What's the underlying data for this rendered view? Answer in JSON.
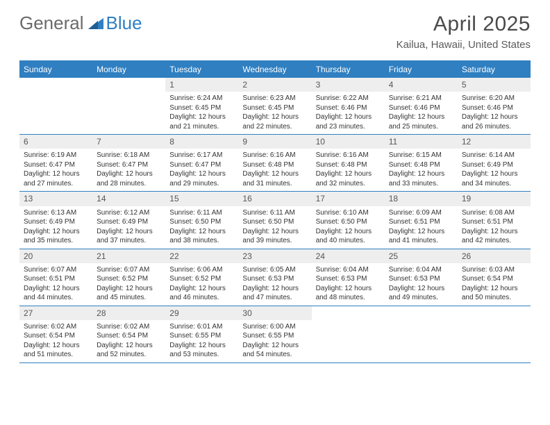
{
  "logo": {
    "text_general": "General",
    "text_blue": "Blue"
  },
  "title": "April 2025",
  "location": "Kailua, Hawaii, United States",
  "colors": {
    "brand_blue": "#2f7fc1",
    "header_text": "#ffffff",
    "daynum_bg": "#eeeeee",
    "border": "#2f7fc1",
    "body_text": "#333333"
  },
  "weekdays": [
    "Sunday",
    "Monday",
    "Tuesday",
    "Wednesday",
    "Thursday",
    "Friday",
    "Saturday"
  ],
  "weeks": [
    [
      null,
      null,
      {
        "n": "1",
        "sr": "6:24 AM",
        "ss": "6:45 PM",
        "dl": "12 hours and 21 minutes."
      },
      {
        "n": "2",
        "sr": "6:23 AM",
        "ss": "6:45 PM",
        "dl": "12 hours and 22 minutes."
      },
      {
        "n": "3",
        "sr": "6:22 AM",
        "ss": "6:46 PM",
        "dl": "12 hours and 23 minutes."
      },
      {
        "n": "4",
        "sr": "6:21 AM",
        "ss": "6:46 PM",
        "dl": "12 hours and 25 minutes."
      },
      {
        "n": "5",
        "sr": "6:20 AM",
        "ss": "6:46 PM",
        "dl": "12 hours and 26 minutes."
      }
    ],
    [
      {
        "n": "6",
        "sr": "6:19 AM",
        "ss": "6:47 PM",
        "dl": "12 hours and 27 minutes."
      },
      {
        "n": "7",
        "sr": "6:18 AM",
        "ss": "6:47 PM",
        "dl": "12 hours and 28 minutes."
      },
      {
        "n": "8",
        "sr": "6:17 AM",
        "ss": "6:47 PM",
        "dl": "12 hours and 29 minutes."
      },
      {
        "n": "9",
        "sr": "6:16 AM",
        "ss": "6:48 PM",
        "dl": "12 hours and 31 minutes."
      },
      {
        "n": "10",
        "sr": "6:16 AM",
        "ss": "6:48 PM",
        "dl": "12 hours and 32 minutes."
      },
      {
        "n": "11",
        "sr": "6:15 AM",
        "ss": "6:48 PM",
        "dl": "12 hours and 33 minutes."
      },
      {
        "n": "12",
        "sr": "6:14 AM",
        "ss": "6:49 PM",
        "dl": "12 hours and 34 minutes."
      }
    ],
    [
      {
        "n": "13",
        "sr": "6:13 AM",
        "ss": "6:49 PM",
        "dl": "12 hours and 35 minutes."
      },
      {
        "n": "14",
        "sr": "6:12 AM",
        "ss": "6:49 PM",
        "dl": "12 hours and 37 minutes."
      },
      {
        "n": "15",
        "sr": "6:11 AM",
        "ss": "6:50 PM",
        "dl": "12 hours and 38 minutes."
      },
      {
        "n": "16",
        "sr": "6:11 AM",
        "ss": "6:50 PM",
        "dl": "12 hours and 39 minutes."
      },
      {
        "n": "17",
        "sr": "6:10 AM",
        "ss": "6:50 PM",
        "dl": "12 hours and 40 minutes."
      },
      {
        "n": "18",
        "sr": "6:09 AM",
        "ss": "6:51 PM",
        "dl": "12 hours and 41 minutes."
      },
      {
        "n": "19",
        "sr": "6:08 AM",
        "ss": "6:51 PM",
        "dl": "12 hours and 42 minutes."
      }
    ],
    [
      {
        "n": "20",
        "sr": "6:07 AM",
        "ss": "6:51 PM",
        "dl": "12 hours and 44 minutes."
      },
      {
        "n": "21",
        "sr": "6:07 AM",
        "ss": "6:52 PM",
        "dl": "12 hours and 45 minutes."
      },
      {
        "n": "22",
        "sr": "6:06 AM",
        "ss": "6:52 PM",
        "dl": "12 hours and 46 minutes."
      },
      {
        "n": "23",
        "sr": "6:05 AM",
        "ss": "6:53 PM",
        "dl": "12 hours and 47 minutes."
      },
      {
        "n": "24",
        "sr": "6:04 AM",
        "ss": "6:53 PM",
        "dl": "12 hours and 48 minutes."
      },
      {
        "n": "25",
        "sr": "6:04 AM",
        "ss": "6:53 PM",
        "dl": "12 hours and 49 minutes."
      },
      {
        "n": "26",
        "sr": "6:03 AM",
        "ss": "6:54 PM",
        "dl": "12 hours and 50 minutes."
      }
    ],
    [
      {
        "n": "27",
        "sr": "6:02 AM",
        "ss": "6:54 PM",
        "dl": "12 hours and 51 minutes."
      },
      {
        "n": "28",
        "sr": "6:02 AM",
        "ss": "6:54 PM",
        "dl": "12 hours and 52 minutes."
      },
      {
        "n": "29",
        "sr": "6:01 AM",
        "ss": "6:55 PM",
        "dl": "12 hours and 53 minutes."
      },
      {
        "n": "30",
        "sr": "6:00 AM",
        "ss": "6:55 PM",
        "dl": "12 hours and 54 minutes."
      },
      null,
      null,
      null
    ]
  ],
  "labels": {
    "sunrise_prefix": "Sunrise: ",
    "sunset_prefix": "Sunset: ",
    "daylight_prefix": "Daylight: "
  }
}
